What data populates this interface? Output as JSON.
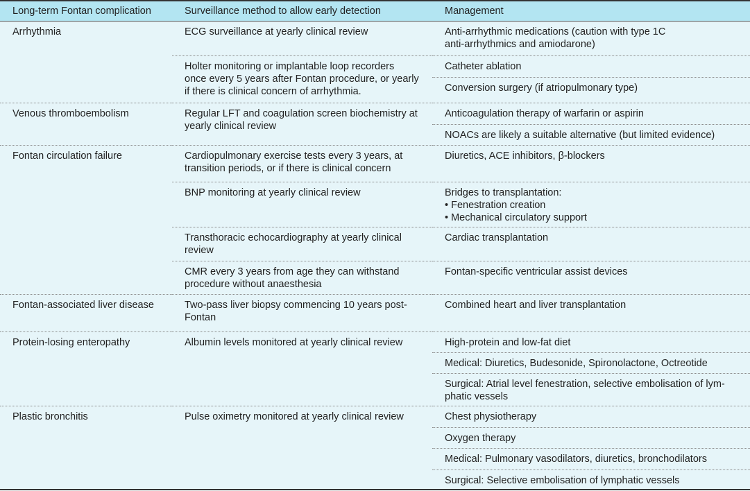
{
  "header": [
    "Long-term Fontan complication",
    "Surveillance method to allow early detection",
    "Management"
  ],
  "rows": {
    "arrhythmia": {
      "complication": "Arrhythmia",
      "surveillance": [
        "ECG surveillance at yearly clinical review",
        "Holter monitoring or implantable loop recorders\nonce every 5 years after Fontan procedure, or yearly\nif there is clinical concern of arrhythmia."
      ],
      "management": [
        "Anti-arrhythmic medications (caution with type 1C\nanti-arrhythmics and amiodarone)",
        "Catheter ablation",
        "Conversion surgery (if atriopulmonary type)"
      ]
    },
    "vte": {
      "complication": "Venous thromboembolism",
      "surveillance": [
        "Regular LFT and coagulation screen biochemistry at\nyearly clinical review"
      ],
      "management": [
        "Anticoagulation therapy of warfarin or aspirin",
        "NOACs are likely a suitable alternative (but limited evidence)"
      ]
    },
    "failure": {
      "complication": "Fontan circulation failure",
      "surveillance": [
        "Cardiopulmonary exercise tests every 3 years, at\ntransition periods, or if there is clinical concern",
        "BNP monitoring at yearly clinical review",
        "Transthoracic echocardiography at yearly clinical\nreview",
        "CMR every 3 years from age they can withstand\nprocedure without anaesthesia"
      ],
      "management": [
        "Diuretics, ACE inhibitors, β-blockers",
        "Bridges to transplantation:\n•  Fenestration creation\n•  Mechanical circulatory support",
        "Cardiac transplantation",
        "Fontan-specific ventricular assist devices"
      ]
    },
    "liver": {
      "complication": "Fontan-associated liver disease",
      "surveillance": [
        "Two-pass liver biopsy commencing 10 years post-\nFontan"
      ],
      "management": [
        "Combined heart and liver transplantation"
      ]
    },
    "ple": {
      "complication": "Protein-losing enteropathy",
      "surveillance": [
        "Albumin levels monitored at yearly clinical review"
      ],
      "management": [
        "High-protein and low-fat diet",
        "Medical: Diuretics, Budesonide, Spironolactone, Octreotide",
        "Surgical: Atrial level fenestration, selective embolisation of lym-\nphatic vessels"
      ]
    },
    "pb": {
      "complication": "Plastic bronchitis",
      "surveillance": [
        "Pulse oximetry monitored at yearly clinical review"
      ],
      "management": [
        "Chest physiotherapy",
        "Oxygen therapy",
        "Medical: Pulmonary vasodilators, diuretics, bronchodilators",
        "Surgical: Selective embolisation of lymphatic vessels"
      ]
    }
  }
}
